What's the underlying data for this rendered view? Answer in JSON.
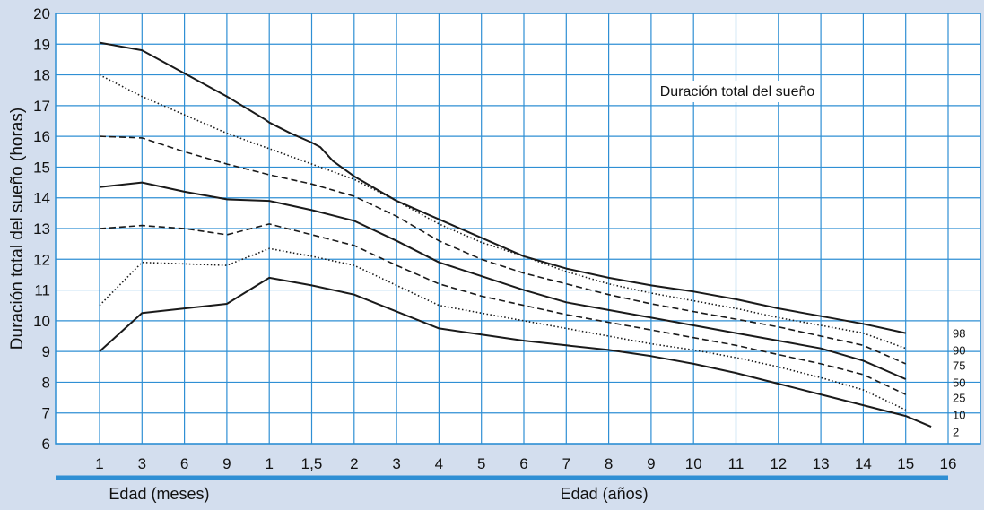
{
  "colors": {
    "background": "#d3deee",
    "plot_bg": "#ffffff",
    "grid": "#2f8fd4",
    "axis_bar": "#2f8fd4",
    "line": "#1a1a1a"
  },
  "chart_data": {
    "type": "line",
    "title": "Duración total del sueño",
    "ylabel": "Duración total del sueño (horas)",
    "xlabel_groups": [
      {
        "label": "Edad (meses)",
        "span": [
          0,
          3
        ]
      },
      {
        "label": "Edad (años)",
        "span": [
          4,
          23
        ]
      }
    ],
    "ylim": [
      6,
      20
    ],
    "yticks": [
      "6",
      "7",
      "8",
      "9",
      "10",
      "11",
      "12",
      "13",
      "14",
      "15",
      "16",
      "17",
      "18",
      "19",
      "20"
    ],
    "categories": [
      "1",
      "3",
      "6",
      "9",
      "1",
      "1,5",
      "2",
      "3",
      "4",
      "5",
      "6",
      "7",
      "8",
      "9",
      "10",
      "11",
      "12",
      "13",
      "14",
      "15",
      "16"
    ],
    "grid": true,
    "series": [
      {
        "name": "98",
        "style": "solid",
        "points": [
          [
            0,
            19.05
          ],
          [
            1,
            18.8
          ],
          [
            3,
            17.3
          ],
          [
            3.9,
            16.55
          ],
          [
            4,
            16.45
          ],
          [
            4.5,
            16.1
          ],
          [
            5,
            15.8
          ],
          [
            5.2,
            15.65
          ],
          [
            5.5,
            15.2
          ],
          [
            6,
            14.7
          ],
          [
            7,
            13.9
          ],
          [
            8,
            13.3
          ],
          [
            9,
            12.7
          ],
          [
            10,
            12.1
          ],
          [
            11,
            11.7
          ],
          [
            12,
            11.4
          ],
          [
            13,
            11.15
          ],
          [
            14,
            10.95
          ],
          [
            15,
            10.7
          ],
          [
            16,
            10.4
          ],
          [
            17,
            10.15
          ],
          [
            18,
            9.9
          ],
          [
            19,
            9.6
          ]
        ]
      },
      {
        "name": "90",
        "style": "dotted",
        "points": [
          [
            0,
            18.0
          ],
          [
            1,
            17.3
          ],
          [
            2,
            16.7
          ],
          [
            3,
            16.1
          ],
          [
            4,
            15.6
          ],
          [
            5,
            15.1
          ],
          [
            6,
            14.6
          ],
          [
            7,
            13.9
          ],
          [
            8,
            13.15
          ],
          [
            9,
            12.55
          ],
          [
            10,
            12.1
          ],
          [
            11,
            11.6
          ],
          [
            12,
            11.2
          ],
          [
            13,
            10.9
          ],
          [
            14,
            10.65
          ],
          [
            15,
            10.4
          ],
          [
            16,
            10.1
          ],
          [
            17,
            9.85
          ],
          [
            18,
            9.6
          ],
          [
            19,
            9.1
          ]
        ]
      },
      {
        "name": "75",
        "style": "dashed",
        "points": [
          [
            0,
            16.0
          ],
          [
            1,
            15.95
          ],
          [
            2,
            15.5
          ],
          [
            3,
            15.1
          ],
          [
            4,
            14.75
          ],
          [
            5,
            14.45
          ],
          [
            6,
            14.05
          ],
          [
            7,
            13.4
          ],
          [
            8,
            12.6
          ],
          [
            9,
            12.0
          ],
          [
            10,
            11.55
          ],
          [
            11,
            11.2
          ],
          [
            12,
            10.85
          ],
          [
            13,
            10.55
          ],
          [
            14,
            10.3
          ],
          [
            15,
            10.05
          ],
          [
            16,
            9.8
          ],
          [
            17,
            9.5
          ],
          [
            18,
            9.2
          ],
          [
            19,
            8.6
          ]
        ]
      },
      {
        "name": "50",
        "style": "solid",
        "points": [
          [
            0,
            14.35
          ],
          [
            1,
            14.5
          ],
          [
            2,
            14.2
          ],
          [
            3,
            13.95
          ],
          [
            4,
            13.9
          ],
          [
            5,
            13.6
          ],
          [
            6,
            13.25
          ],
          [
            7,
            12.6
          ],
          [
            8,
            11.9
          ],
          [
            9,
            11.45
          ],
          [
            10,
            11.0
          ],
          [
            11,
            10.6
          ],
          [
            12,
            10.35
          ],
          [
            13,
            10.1
          ],
          [
            14,
            9.85
          ],
          [
            15,
            9.6
          ],
          [
            16,
            9.35
          ],
          [
            17,
            9.1
          ],
          [
            18,
            8.7
          ],
          [
            19,
            8.1
          ]
        ]
      },
      {
        "name": "25",
        "style": "dashed",
        "points": [
          [
            0,
            13.0
          ],
          [
            1,
            13.1
          ],
          [
            2,
            13.0
          ],
          [
            3,
            12.8
          ],
          [
            4,
            13.15
          ],
          [
            5,
            12.8
          ],
          [
            6,
            12.45
          ],
          [
            7,
            11.8
          ],
          [
            8,
            11.2
          ],
          [
            9,
            10.8
          ],
          [
            10,
            10.5
          ],
          [
            11,
            10.2
          ],
          [
            12,
            9.95
          ],
          [
            13,
            9.7
          ],
          [
            14,
            9.45
          ],
          [
            15,
            9.2
          ],
          [
            16,
            8.9
          ],
          [
            17,
            8.6
          ],
          [
            18,
            8.25
          ],
          [
            19,
            7.6
          ]
        ]
      },
      {
        "name": "10",
        "style": "dotted",
        "points": [
          [
            0,
            10.5
          ],
          [
            1,
            11.9
          ],
          [
            2,
            11.85
          ],
          [
            3,
            11.8
          ],
          [
            4,
            12.35
          ],
          [
            5,
            12.1
          ],
          [
            6,
            11.8
          ],
          [
            7,
            11.15
          ],
          [
            8,
            10.5
          ],
          [
            9,
            10.25
          ],
          [
            10,
            10.0
          ],
          [
            11,
            9.75
          ],
          [
            12,
            9.5
          ],
          [
            13,
            9.25
          ],
          [
            14,
            9.05
          ],
          [
            15,
            8.8
          ],
          [
            16,
            8.5
          ],
          [
            17,
            8.15
          ],
          [
            18,
            7.75
          ],
          [
            19,
            7.1
          ]
        ]
      },
      {
        "name": "2",
        "style": "solid",
        "points": [
          [
            0,
            9.0
          ],
          [
            1,
            10.25
          ],
          [
            2,
            10.4
          ],
          [
            3,
            10.55
          ],
          [
            4,
            11.4
          ],
          [
            5,
            11.15
          ],
          [
            6,
            10.85
          ],
          [
            7,
            10.3
          ],
          [
            8,
            9.75
          ],
          [
            9,
            9.55
          ],
          [
            10,
            9.35
          ],
          [
            11,
            9.2
          ],
          [
            12,
            9.05
          ],
          [
            13,
            8.85
          ],
          [
            14,
            8.6
          ],
          [
            15,
            8.3
          ],
          [
            16,
            7.95
          ],
          [
            17,
            7.6
          ],
          [
            18,
            7.25
          ],
          [
            19,
            6.9
          ],
          [
            19.6,
            6.55
          ]
        ]
      }
    ]
  }
}
